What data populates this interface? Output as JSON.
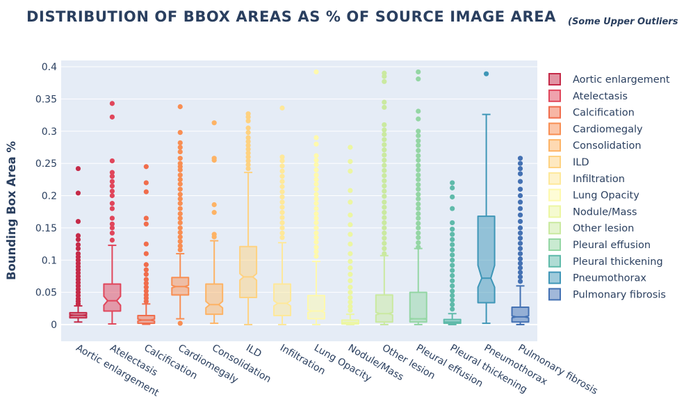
{
  "title": "DISTRIBUTION OF BBOX AREAS AS % OF SOURCE IMAGE AREA",
  "subtitle": "(Some Upper Outliers",
  "chart_data": {
    "type": "box",
    "ylabel": "Bounding Box Area %",
    "ylim": [
      -0.025,
      0.4
    ],
    "yticks": [
      0,
      0.05,
      0.1,
      0.15,
      0.2,
      0.25,
      0.3,
      0.35,
      0.4
    ],
    "ytick_labels": [
      "0",
      "0.05",
      "0.1",
      "0.15",
      "0.2",
      "0.25",
      "0.3",
      "0.35",
      "0.4"
    ],
    "notched": true,
    "grid": true,
    "legend_position": "right",
    "series": [
      {
        "name": "Aortic enlargement",
        "color": "#c52a48",
        "q1": 0.0105,
        "median": 0.0145,
        "q3": 0.0185,
        "lower_fence": 0.004,
        "upper_fence": 0.029,
        "notch_low": 0.0138,
        "notch_high": 0.0152,
        "outliers": [
          0.242,
          0.204,
          0.16,
          0.138,
          0.132,
          0.124,
          0.118,
          0.11,
          0.105,
          0.1,
          0.095,
          0.09,
          0.085,
          0.08,
          0.075,
          0.07,
          0.065,
          0.06,
          0.055,
          0.05,
          0.045,
          0.04,
          0.036,
          0.032
        ]
      },
      {
        "name": "Atelectasis",
        "color": "#e0465b",
        "q1": 0.021,
        "median": 0.037,
        "q3": 0.063,
        "lower_fence": 0.001,
        "upper_fence": 0.123,
        "notch_low": 0.03,
        "notch_high": 0.044,
        "outliers": [
          0.343,
          0.322,
          0.254,
          0.236,
          0.23,
          0.222,
          0.215,
          0.207,
          0.2,
          0.188,
          0.18,
          0.165,
          0.156,
          0.15,
          0.142,
          0.131
        ]
      },
      {
        "name": "Calcification",
        "color": "#f06d4c",
        "q1": 0.002,
        "median": 0.007,
        "q3": 0.014,
        "lower_fence": 0.0005,
        "upper_fence": 0.032,
        "notch_low": 0.0055,
        "notch_high": 0.0085,
        "outliers": [
          0.245,
          0.22,
          0.206,
          0.165,
          0.156,
          0.125,
          0.11,
          0.093,
          0.085,
          0.078,
          0.07,
          0.064,
          0.058,
          0.052,
          0.046,
          0.041,
          0.036
        ]
      },
      {
        "name": "Cardiomegaly",
        "color": "#f88e53",
        "q1": 0.046,
        "median": 0.059,
        "q3": 0.073,
        "lower_fence": 0.009,
        "upper_fence": 0.11,
        "notch_low": 0.057,
        "notch_high": 0.061,
        "outliers": [
          0.338,
          0.298,
          0.282,
          0.275,
          0.268,
          0.258,
          0.25,
          0.245,
          0.24,
          0.232,
          0.225,
          0.218,
          0.21,
          0.202,
          0.195,
          0.188,
          0.18,
          0.172,
          0.165,
          0.158,
          0.15,
          0.143,
          0.136,
          0.129,
          0.122,
          0.116,
          0.002
        ]
      },
      {
        "name": "Consolidation",
        "color": "#fdb365",
        "q1": 0.016,
        "median": 0.031,
        "q3": 0.063,
        "lower_fence": 0.002,
        "upper_fence": 0.13,
        "notch_low": 0.026,
        "notch_high": 0.036,
        "outliers": [
          0.313,
          0.258,
          0.255,
          0.186,
          0.174,
          0.14,
          0.136
        ]
      },
      {
        "name": "ILD",
        "color": "#fed281",
        "q1": 0.042,
        "median": 0.074,
        "q3": 0.121,
        "lower_fence": 0.0,
        "upper_fence": 0.236,
        "notch_low": 0.069,
        "notch_high": 0.079,
        "outliers": [
          0.327,
          0.322,
          0.316,
          0.305,
          0.298,
          0.29,
          0.284,
          0.278,
          0.272,
          0.266,
          0.26,
          0.254,
          0.248,
          0.242
        ]
      },
      {
        "name": "Infiltration",
        "color": "#fee89a",
        "q1": 0.014,
        "median": 0.033,
        "q3": 0.063,
        "lower_fence": 0.0,
        "upper_fence": 0.127,
        "notch_low": 0.029,
        "notch_high": 0.037,
        "outliers": [
          0.336,
          0.26,
          0.254,
          0.246,
          0.238,
          0.23,
          0.222,
          0.214,
          0.206,
          0.198,
          0.19,
          0.182,
          0.174,
          0.166,
          0.158,
          0.15,
          0.142,
          0.135
        ]
      },
      {
        "name": "Lung Opacity",
        "color": "#fef9ad",
        "q1": 0.009,
        "median": 0.021,
        "q3": 0.045,
        "lower_fence": 0.0,
        "upper_fence": 0.098,
        "notch_low": 0.019,
        "notch_high": 0.023,
        "outliers": [
          0.392,
          0.29,
          0.28,
          0.262,
          0.255,
          0.248,
          0.24,
          0.232,
          0.225,
          0.218,
          0.21,
          0.202,
          0.195,
          0.188,
          0.18,
          0.172,
          0.165,
          0.158,
          0.15,
          0.142,
          0.135,
          0.128,
          0.12,
          0.113,
          0.106
        ]
      },
      {
        "name": "Nodule/Mass",
        "color": "#ecf6a2",
        "q1": 0.001,
        "median": 0.003,
        "q3": 0.007,
        "lower_fence": 0.0,
        "upper_fence": 0.016,
        "notch_low": 0.0028,
        "notch_high": 0.0032,
        "outliers": [
          0.275,
          0.253,
          0.238,
          0.208,
          0.19,
          0.17,
          0.155,
          0.14,
          0.125,
          0.11,
          0.098,
          0.088,
          0.078,
          0.068,
          0.058,
          0.05,
          0.042,
          0.035,
          0.028,
          0.022
        ]
      },
      {
        "name": "Other lesion",
        "color": "#cae9a0",
        "q1": 0.004,
        "median": 0.017,
        "q3": 0.046,
        "lower_fence": 0.0,
        "upper_fence": 0.107,
        "notch_low": 0.015,
        "notch_high": 0.019,
        "outliers": [
          0.39,
          0.385,
          0.377,
          0.345,
          0.337,
          0.31,
          0.302,
          0.295,
          0.287,
          0.279,
          0.271,
          0.263,
          0.255,
          0.247,
          0.239,
          0.231,
          0.223,
          0.215,
          0.207,
          0.199,
          0.19,
          0.182,
          0.174,
          0.166,
          0.158,
          0.15,
          0.142,
          0.134,
          0.126,
          0.118,
          0.11
        ]
      },
      {
        "name": "Pleural effusion",
        "color": "#94d6a4",
        "q1": 0.004,
        "median": 0.009,
        "q3": 0.05,
        "lower_fence": 0.0,
        "upper_fence": 0.118,
        "notch_low": 0.0085,
        "notch_high": 0.0095,
        "outliers": [
          0.392,
          0.381,
          0.331,
          0.319,
          0.3,
          0.293,
          0.285,
          0.278,
          0.27,
          0.262,
          0.255,
          0.247,
          0.24,
          0.232,
          0.225,
          0.217,
          0.21,
          0.202,
          0.195,
          0.187,
          0.18,
          0.172,
          0.165,
          0.157,
          0.15,
          0.142,
          0.135,
          0.127,
          0.12
        ]
      },
      {
        "name": "Pleural thickening",
        "color": "#5fbaaa",
        "q1": 0.002,
        "median": 0.004,
        "q3": 0.008,
        "lower_fence": 0.0,
        "upper_fence": 0.017,
        "notch_low": 0.0038,
        "notch_high": 0.0042,
        "outliers": [
          0.22,
          0.212,
          0.198,
          0.18,
          0.158,
          0.148,
          0.14,
          0.132,
          0.124,
          0.116,
          0.108,
          0.1,
          0.092,
          0.084,
          0.076,
          0.068,
          0.06,
          0.052,
          0.045,
          0.038,
          0.031,
          0.024
        ]
      },
      {
        "name": "Pneumothorax",
        "color": "#3f96b7",
        "q1": 0.034,
        "median": 0.072,
        "q3": 0.168,
        "lower_fence": 0.002,
        "upper_fence": 0.326,
        "notch_low": 0.058,
        "notch_high": 0.092,
        "outliers": [
          0.389
        ]
      },
      {
        "name": "Pulmonary fibrosis",
        "color": "#4471b3",
        "q1": 0.004,
        "median": 0.012,
        "q3": 0.027,
        "lower_fence": 0.0,
        "upper_fence": 0.06,
        "notch_low": 0.0105,
        "notch_high": 0.0135,
        "outliers": [
          0.258,
          0.25,
          0.242,
          0.234,
          0.222,
          0.21,
          0.2,
          0.19,
          0.18,
          0.17,
          0.16,
          0.15,
          0.142,
          0.134,
          0.126,
          0.118,
          0.11,
          0.102,
          0.095,
          0.088,
          0.081,
          0.074,
          0.067
        ]
      }
    ]
  }
}
